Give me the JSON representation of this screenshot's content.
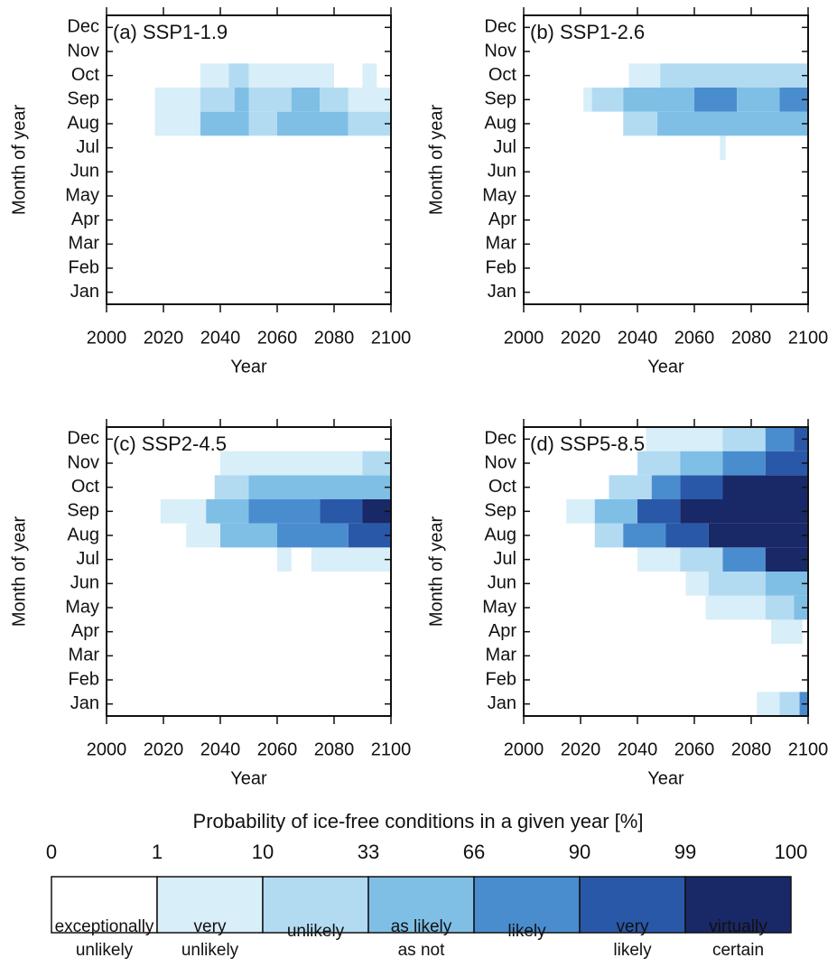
{
  "chart_data": [
    {
      "type": "heatmap",
      "title": "(a) SSP1-1.9",
      "xlabel": "Year",
      "ylabel": "Month of year",
      "categories": [
        "Jan",
        "Feb",
        "Mar",
        "Apr",
        "May",
        "Jun",
        "Jul",
        "Aug",
        "Sep",
        "Oct",
        "Nov",
        "Dec"
      ],
      "xlim": [
        2000,
        2100
      ],
      "xticks": [
        2000,
        2020,
        2040,
        2060,
        2080,
        2100
      ],
      "rows": [
        [],
        [],
        [],
        [],
        [],
        [],
        [],
        [
          [
            2017,
            2033,
            1
          ],
          [
            2033,
            2050,
            3
          ],
          [
            2050,
            2060,
            2
          ],
          [
            2060,
            2085,
            3
          ],
          [
            2085,
            2100,
            2
          ]
        ],
        [
          [
            2017,
            2033,
            1
          ],
          [
            2033,
            2045,
            2
          ],
          [
            2045,
            2050,
            3
          ],
          [
            2050,
            2065,
            2
          ],
          [
            2065,
            2075,
            3
          ],
          [
            2075,
            2085,
            2
          ],
          [
            2085,
            2100,
            1
          ]
        ],
        [
          [
            2033,
            2043,
            1
          ],
          [
            2043,
            2050,
            2
          ],
          [
            2050,
            2080,
            1
          ],
          [
            2090,
            2095,
            1
          ]
        ],
        [],
        []
      ]
    },
    {
      "type": "heatmap",
      "title": "(b) SSP1-2.6",
      "xlabel": "Year",
      "ylabel": "Month of year",
      "categories": [
        "Jan",
        "Feb",
        "Mar",
        "Apr",
        "May",
        "Jun",
        "Jul",
        "Aug",
        "Sep",
        "Oct",
        "Nov",
        "Dec"
      ],
      "xlim": [
        2000,
        2100
      ],
      "xticks": [
        2000,
        2020,
        2040,
        2060,
        2080,
        2100
      ],
      "rows": [
        [],
        [],
        [],
        [],
        [],
        [],
        [
          [
            2069,
            2071,
            1
          ]
        ],
        [
          [
            2035,
            2047,
            2
          ],
          [
            2047,
            2100,
            3
          ]
        ],
        [
          [
            2021,
            2024,
            1
          ],
          [
            2024,
            2035,
            2
          ],
          [
            2035,
            2060,
            3
          ],
          [
            2060,
            2075,
            4
          ],
          [
            2075,
            2090,
            3
          ],
          [
            2090,
            2100,
            4
          ]
        ],
        [
          [
            2037,
            2048,
            1
          ],
          [
            2048,
            2100,
            2
          ]
        ],
        [],
        []
      ]
    },
    {
      "type": "heatmap",
      "title": "(c) SSP2-4.5",
      "xlabel": "Year",
      "ylabel": "Month of year",
      "categories": [
        "Jan",
        "Feb",
        "Mar",
        "Apr",
        "May",
        "Jun",
        "Jul",
        "Aug",
        "Sep",
        "Oct",
        "Nov",
        "Dec"
      ],
      "xlim": [
        2000,
        2100
      ],
      "xticks": [
        2000,
        2020,
        2040,
        2060,
        2080,
        2100
      ],
      "rows": [
        [],
        [],
        [],
        [],
        [],
        [],
        [
          [
            2060,
            2065,
            1
          ],
          [
            2072,
            2100,
            1
          ]
        ],
        [
          [
            2028,
            2040,
            1
          ],
          [
            2040,
            2060,
            3
          ],
          [
            2060,
            2085,
            4
          ],
          [
            2085,
            2100,
            5
          ]
        ],
        [
          [
            2019,
            2035,
            1
          ],
          [
            2035,
            2050,
            3
          ],
          [
            2050,
            2075,
            4
          ],
          [
            2075,
            2090,
            5
          ],
          [
            2090,
            2100,
            6
          ]
        ],
        [
          [
            2038,
            2050,
            2
          ],
          [
            2050,
            2100,
            3
          ]
        ],
        [
          [
            2040,
            2090,
            1
          ],
          [
            2090,
            2100,
            2
          ]
        ],
        []
      ]
    },
    {
      "type": "heatmap",
      "title": "(d) SSP5-8.5",
      "xlabel": "Year",
      "ylabel": "Month of year",
      "categories": [
        "Jan",
        "Feb",
        "Mar",
        "Apr",
        "May",
        "Jun",
        "Jul",
        "Aug",
        "Sep",
        "Oct",
        "Nov",
        "Dec"
      ],
      "xlim": [
        2000,
        2100
      ],
      "xticks": [
        2000,
        2020,
        2040,
        2060,
        2080,
        2100
      ],
      "rows": [
        [
          [
            2082,
            2090,
            1
          ],
          [
            2090,
            2097,
            2
          ],
          [
            2097,
            2100,
            4
          ]
        ],
        [],
        [],
        [
          [
            2087,
            2098,
            1
          ]
        ],
        [
          [
            2064,
            2085,
            1
          ],
          [
            2085,
            2095,
            2
          ],
          [
            2095,
            2100,
            3
          ]
        ],
        [
          [
            2057,
            2065,
            1
          ],
          [
            2065,
            2085,
            2
          ],
          [
            2085,
            2100,
            3
          ]
        ],
        [
          [
            2040,
            2055,
            1
          ],
          [
            2055,
            2070,
            2
          ],
          [
            2070,
            2085,
            4
          ],
          [
            2085,
            2100,
            6
          ]
        ],
        [
          [
            2025,
            2035,
            2
          ],
          [
            2035,
            2050,
            4
          ],
          [
            2050,
            2065,
            5
          ],
          [
            2065,
            2100,
            6
          ]
        ],
        [
          [
            2015,
            2025,
            1
          ],
          [
            2025,
            2040,
            3
          ],
          [
            2040,
            2055,
            5
          ],
          [
            2055,
            2100,
            6
          ]
        ],
        [
          [
            2030,
            2045,
            2
          ],
          [
            2045,
            2055,
            4
          ],
          [
            2055,
            2070,
            5
          ],
          [
            2070,
            2100,
            6
          ]
        ],
        [
          [
            2040,
            2055,
            2
          ],
          [
            2055,
            2070,
            3
          ],
          [
            2070,
            2085,
            4
          ],
          [
            2085,
            2100,
            5
          ]
        ],
        [
          [
            2043,
            2070,
            1
          ],
          [
            2070,
            2085,
            2
          ],
          [
            2085,
            2095,
            4
          ],
          [
            2095,
            2100,
            5
          ]
        ]
      ]
    }
  ],
  "colorbar": {
    "title": "Probability of ice-free conditions in a given year [%]",
    "bounds": [
      0,
      1,
      10,
      33,
      66,
      90,
      99,
      100
    ],
    "colors": [
      "#ffffff",
      "#d8eef8",
      "#b2dbf2",
      "#7fbfe6",
      "#4a8dcf",
      "#2a58a8",
      "#192866"
    ],
    "labels": [
      [
        "exceptionally",
        "unlikely"
      ],
      [
        "very",
        "unlikely"
      ],
      [
        "unlikely"
      ],
      [
        "as likely",
        "as not"
      ],
      [
        "likely"
      ],
      [
        "very",
        "likely"
      ],
      [
        "virtually",
        "certain"
      ]
    ]
  }
}
